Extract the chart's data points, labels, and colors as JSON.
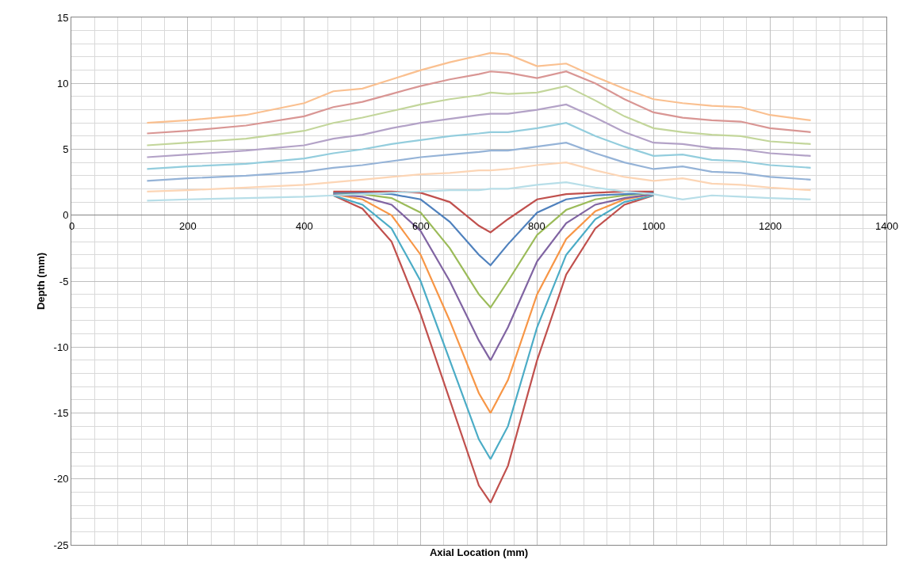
{
  "chart_data": {
    "type": "line",
    "xlabel": "Axial Location (mm)",
    "ylabel": "Depth (mm)",
    "xlim": [
      0,
      1400
    ],
    "ylim": [
      -25,
      15
    ],
    "xticks": [
      0,
      200,
      400,
      600,
      800,
      1000,
      1200,
      1400
    ],
    "yticks": [
      -25,
      -20,
      -15,
      -10,
      -5,
      0,
      5,
      10,
      15
    ],
    "grid": true,
    "marker": "none",
    "line_style": "solid",
    "series": [
      {
        "color": "#c0504d",
        "x": [
          450,
          500,
          550,
          600,
          650,
          700,
          720,
          750,
          800,
          850,
          900,
          950,
          1000
        ],
        "values": [
          1.5,
          0.5,
          -2,
          -7.5,
          -14,
          -20.5,
          -21.8,
          -19,
          -11,
          -4.5,
          -1,
          0.8,
          1.5
        ]
      },
      {
        "color": "#4bacc6",
        "x": [
          450,
          500,
          550,
          600,
          650,
          700,
          720,
          750,
          800,
          850,
          900,
          950,
          1000
        ],
        "values": [
          1.5,
          0.8,
          -1,
          -5,
          -11,
          -17,
          -18.5,
          -16,
          -8.5,
          -3,
          -0.3,
          1,
          1.5
        ]
      },
      {
        "color": "#f79646",
        "x": [
          450,
          500,
          550,
          600,
          650,
          700,
          720,
          750,
          800,
          850,
          900,
          950,
          1000
        ],
        "values": [
          1.6,
          1.2,
          0,
          -3,
          -8,
          -13.5,
          -15,
          -12.5,
          -6,
          -1.8,
          0.3,
          1.2,
          1.6
        ]
      },
      {
        "color": "#8064a2",
        "x": [
          450,
          500,
          550,
          600,
          650,
          700,
          720,
          750,
          800,
          850,
          900,
          950,
          1000
        ],
        "values": [
          1.6,
          1.4,
          0.8,
          -1.2,
          -5,
          -9.5,
          -11,
          -8.5,
          -3.5,
          -0.6,
          0.8,
          1.3,
          1.6
        ]
      },
      {
        "color": "#9bbb59",
        "x": [
          450,
          500,
          550,
          600,
          650,
          700,
          720,
          750,
          800,
          850,
          900,
          950,
          1000
        ],
        "values": [
          1.7,
          1.6,
          1.3,
          0.2,
          -2.5,
          -6,
          -7,
          -5,
          -1.5,
          0.4,
          1.2,
          1.5,
          1.7
        ]
      },
      {
        "color": "#4f81bd",
        "x": [
          450,
          500,
          550,
          600,
          650,
          700,
          720,
          750,
          800,
          850,
          900,
          950,
          1000
        ],
        "values": [
          1.7,
          1.7,
          1.6,
          1.2,
          -0.5,
          -3,
          -3.8,
          -2.2,
          0.2,
          1.2,
          1.5,
          1.6,
          1.7
        ]
      },
      {
        "color": "#c0504d",
        "x": [
          450,
          500,
          550,
          600,
          650,
          700,
          720,
          750,
          800,
          850,
          900,
          950,
          1000
        ],
        "values": [
          1.8,
          1.8,
          1.8,
          1.7,
          1,
          -0.8,
          -1.3,
          -0.3,
          1.2,
          1.6,
          1.7,
          1.8,
          1.8
        ]
      },
      {
        "color": "#fac090",
        "x": [
          130,
          200,
          300,
          400,
          450,
          500,
          550,
          600,
          650,
          700,
          720,
          750,
          800,
          850,
          900,
          950,
          1000,
          1050,
          1100,
          1150,
          1200,
          1270
        ],
        "values": [
          7,
          7.2,
          7.6,
          8.5,
          9.4,
          9.6,
          10.3,
          11,
          11.6,
          12.1,
          12.3,
          12.2,
          11.3,
          11.5,
          10.5,
          9.6,
          8.8,
          8.5,
          8.3,
          8.2,
          7.6,
          7.2
        ]
      },
      {
        "color": "#d99694",
        "x": [
          130,
          200,
          300,
          400,
          450,
          500,
          550,
          600,
          650,
          700,
          720,
          750,
          800,
          850,
          900,
          950,
          1000,
          1050,
          1100,
          1150,
          1200,
          1270
        ],
        "values": [
          6.2,
          6.4,
          6.8,
          7.5,
          8.2,
          8.6,
          9.2,
          9.8,
          10.3,
          10.7,
          10.9,
          10.8,
          10.4,
          10.9,
          10,
          8.8,
          7.8,
          7.4,
          7.2,
          7.1,
          6.6,
          6.3
        ]
      },
      {
        "color": "#c3d69b",
        "x": [
          130,
          200,
          300,
          400,
          450,
          500,
          550,
          600,
          650,
          700,
          720,
          750,
          800,
          850,
          900,
          950,
          1000,
          1050,
          1100,
          1150,
          1200,
          1270
        ],
        "values": [
          5.3,
          5.5,
          5.8,
          6.4,
          7,
          7.4,
          7.9,
          8.4,
          8.8,
          9.1,
          9.3,
          9.2,
          9.3,
          9.8,
          8.7,
          7.5,
          6.6,
          6.3,
          6.1,
          6,
          5.6,
          5.4
        ]
      },
      {
        "color": "#b3a2c7",
        "x": [
          130,
          200,
          300,
          400,
          450,
          500,
          550,
          600,
          650,
          700,
          720,
          750,
          800,
          850,
          900,
          950,
          1000,
          1050,
          1100,
          1150,
          1200,
          1270
        ],
        "values": [
          4.4,
          4.6,
          4.9,
          5.3,
          5.8,
          6.1,
          6.6,
          7,
          7.3,
          7.6,
          7.7,
          7.7,
          8,
          8.4,
          7.4,
          6.3,
          5.5,
          5.4,
          5.1,
          5,
          4.7,
          4.5
        ]
      },
      {
        "color": "#93cddd",
        "x": [
          130,
          200,
          300,
          400,
          450,
          500,
          550,
          600,
          650,
          700,
          720,
          750,
          800,
          850,
          900,
          950,
          1000,
          1050,
          1100,
          1150,
          1200,
          1270
        ],
        "values": [
          3.5,
          3.7,
          3.9,
          4.3,
          4.7,
          5,
          5.4,
          5.7,
          6,
          6.2,
          6.3,
          6.3,
          6.6,
          7,
          6,
          5.2,
          4.5,
          4.6,
          4.2,
          4.1,
          3.8,
          3.6
        ]
      },
      {
        "color": "#95b3d7",
        "x": [
          130,
          200,
          300,
          400,
          450,
          500,
          550,
          600,
          650,
          700,
          720,
          750,
          800,
          850,
          900,
          950,
          1000,
          1050,
          1100,
          1150,
          1200,
          1270
        ],
        "values": [
          2.6,
          2.8,
          3,
          3.3,
          3.6,
          3.8,
          4.1,
          4.4,
          4.6,
          4.8,
          4.9,
          4.9,
          5.2,
          5.5,
          4.7,
          4,
          3.5,
          3.7,
          3.3,
          3.2,
          2.9,
          2.7
        ]
      },
      {
        "color": "#fcd5b5",
        "x": [
          130,
          200,
          300,
          400,
          450,
          500,
          550,
          600,
          650,
          700,
          720,
          750,
          800,
          850,
          900,
          950,
          1000,
          1050,
          1100,
          1150,
          1200,
          1270
        ],
        "values": [
          1.8,
          1.9,
          2.1,
          2.3,
          2.5,
          2.7,
          2.9,
          3.1,
          3.2,
          3.4,
          3.4,
          3.5,
          3.8,
          4,
          3.4,
          2.9,
          2.6,
          2.8,
          2.4,
          2.3,
          2.1,
          1.9
        ]
      },
      {
        "color": "#b7dee8",
        "x": [
          130,
          200,
          300,
          400,
          450,
          500,
          550,
          600,
          650,
          700,
          720,
          750,
          800,
          850,
          900,
          950,
          1000,
          1050,
          1100,
          1150,
          1200,
          1270
        ],
        "values": [
          1.1,
          1.2,
          1.3,
          1.4,
          1.5,
          1.6,
          1.7,
          1.8,
          1.9,
          1.9,
          2,
          2,
          2.3,
          2.5,
          2.1,
          1.8,
          1.6,
          1.2,
          1.5,
          1.4,
          1.3,
          1.2
        ]
      }
    ]
  }
}
